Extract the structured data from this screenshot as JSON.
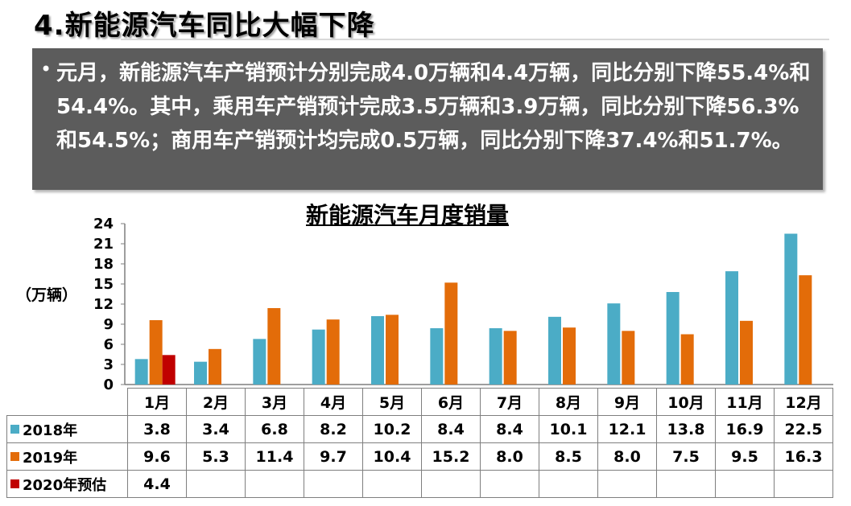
{
  "header": {
    "title": "4.新能源汽车同比大幅下降",
    "paragraph": "元月，新能源汽车产销预计分别完成4.0万辆和4.4万辆，同比分别下降55.4%和54.4%。其中，乘用车产销预计完成3.5万辆和3.9万辆，同比分别下降56.3%和54.5%；商用车产销预计均完成0.5万辆，同比分别下降37.4%和51.7%。"
  },
  "chart_data": {
    "type": "bar",
    "title": "新能源汽车月度销量",
    "ylabel": "（万辆）",
    "ylim": [
      0,
      24
    ],
    "yticks": [
      0,
      3,
      6,
      9,
      12,
      15,
      18,
      21,
      24
    ],
    "categories": [
      "1月",
      "2月",
      "3月",
      "4月",
      "5月",
      "6月",
      "7月",
      "8月",
      "9月",
      "10月",
      "11月",
      "12月"
    ],
    "series": [
      {
        "name": "2018年",
        "color": "#4bacc6",
        "values": [
          3.8,
          3.4,
          6.8,
          8.2,
          10.2,
          8.4,
          8.4,
          10.1,
          12.1,
          13.8,
          16.9,
          22.5
        ]
      },
      {
        "name": "2019年",
        "color": "#e36c09",
        "values": [
          9.6,
          5.3,
          11.4,
          9.7,
          10.4,
          15.2,
          8.0,
          8.5,
          8.0,
          7.5,
          9.5,
          16.3
        ]
      },
      {
        "name": "2020年预估",
        "color": "#c00000",
        "values": [
          4.4,
          null,
          null,
          null,
          null,
          null,
          null,
          null,
          null,
          null,
          null,
          null
        ]
      }
    ],
    "table_values": [
      [
        "3.8",
        "3.4",
        "6.8",
        "8.2",
        "10.2",
        "8.4",
        "8.4",
        "10.1",
        "12.1",
        "13.8",
        "16.9",
        "22.5"
      ],
      [
        "9.6",
        "5.3",
        "11.4",
        "9.7",
        "10.4",
        "15.2",
        "8.0",
        "8.5",
        "8.0",
        "7.5",
        "9.5",
        "16.3"
      ],
      [
        "4.4",
        "",
        "",
        "",
        "",
        "",
        "",
        "",
        "",
        "",
        "",
        ""
      ]
    ],
    "grid": false,
    "legend": "data-table-left"
  }
}
